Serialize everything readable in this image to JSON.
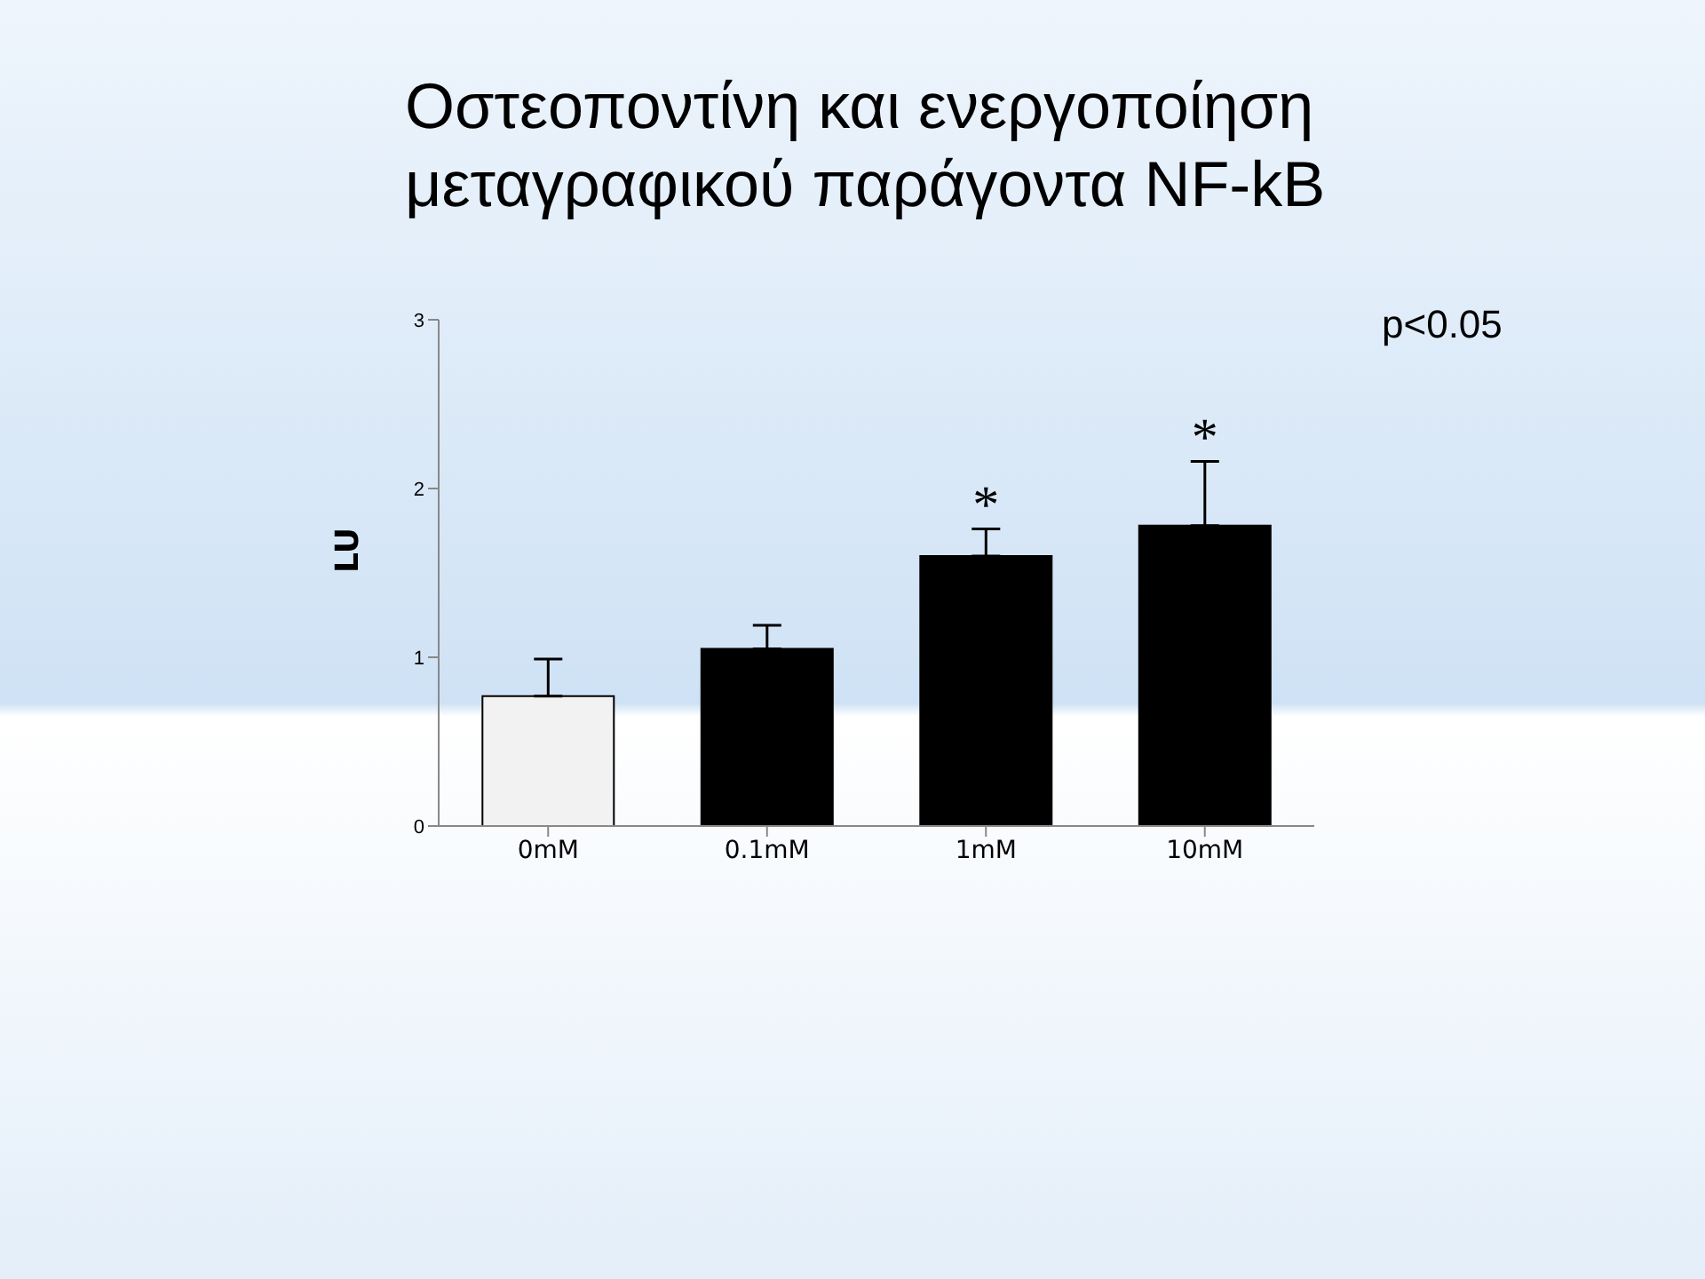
{
  "chart_data": {
    "type": "bar",
    "title": "Οστεοποντίνη και ενεργοποίηση μεταγραφικού παράγοντα NF-kB",
    "ylabel": "LU",
    "categories": [
      "0mM",
      "0.1mM",
      "1mM",
      "10mM"
    ],
    "values": [
      0.77,
      1.05,
      1.6,
      1.78
    ],
    "colors": [
      "#f2f2f2",
      "#000000",
      "#000000",
      "#000000"
    ],
    "errors": [
      [
        0.77,
        0.99
      ],
      [
        1.05,
        1.19
      ],
      [
        1.6,
        1.76
      ],
      [
        1.78,
        2.16
      ]
    ],
    "ylim": [
      0,
      3
    ],
    "yticks": [
      0,
      1,
      2,
      3
    ],
    "grid": false,
    "legend": false,
    "annotations": [
      {
        "text": "*",
        "x": "1mM",
        "y": 1.76
      },
      {
        "text": "*",
        "x": "10mM",
        "y": 2.16
      },
      "p<0.05"
    ]
  }
}
